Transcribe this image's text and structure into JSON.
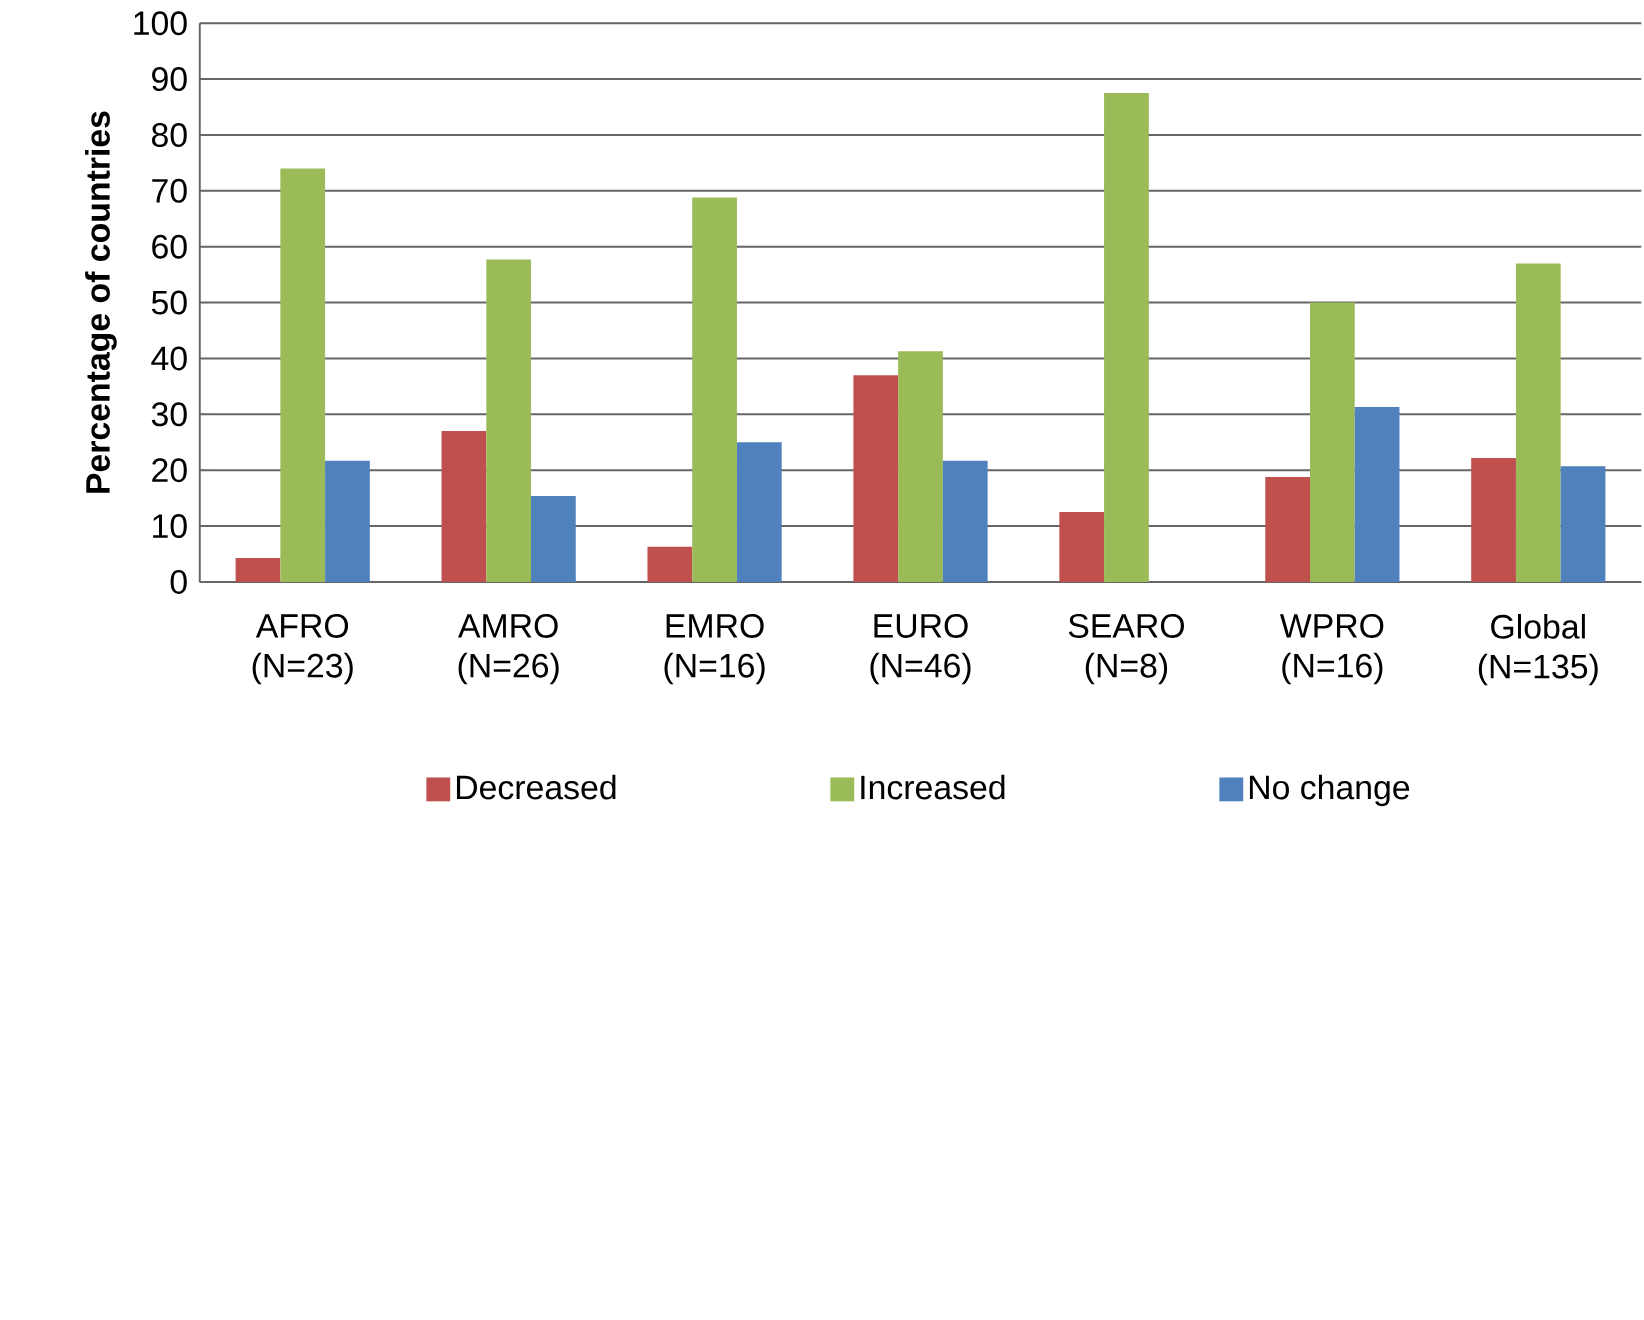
{
  "chart_data": {
    "type": "bar",
    "ylabel": "Percentage of countries",
    "categories": [
      "AFRO (N=23)",
      "AMRO (N=26)",
      "EMRO (N=16)",
      "EURO (N=46)",
      "SEARO (N=8)",
      "WPRO (N=16)",
      "Global (N=135)"
    ],
    "series": [
      {
        "name": "Decreased",
        "color": "#c0504d",
        "values": [
          4.3,
          27,
          6.3,
          37,
          12.5,
          18.8,
          22.2
        ]
      },
      {
        "name": "Increased",
        "color": "#9bbb59",
        "values": [
          74,
          57.7,
          68.8,
          41.3,
          87.5,
          50,
          57
        ]
      },
      {
        "name": "No change",
        "color": "#4f81bd",
        "values": [
          21.7,
          15.4,
          25,
          21.7,
          0,
          31.3,
          20.7
        ]
      }
    ],
    "ylim": [
      0,
      100
    ],
    "yticks": [
      0,
      10,
      20,
      30,
      40,
      50,
      60,
      70,
      80,
      90,
      100
    ],
    "grid": "y",
    "legend": "bottom"
  }
}
